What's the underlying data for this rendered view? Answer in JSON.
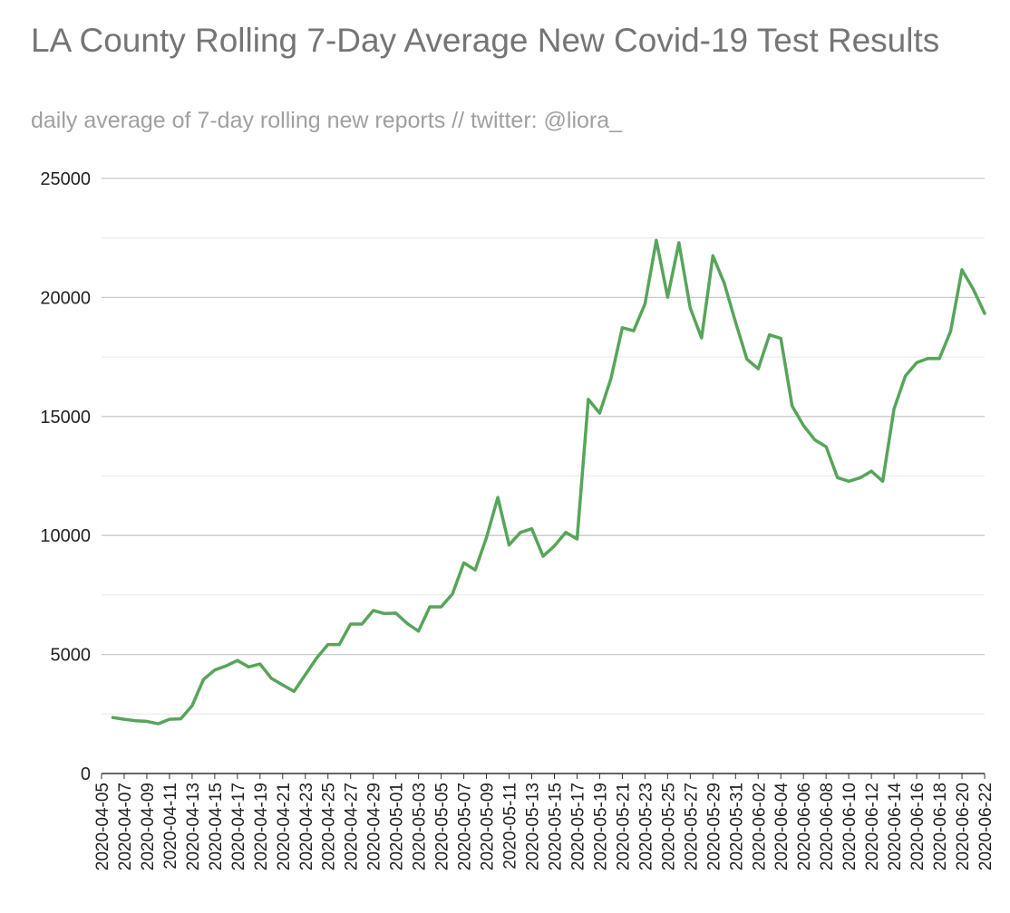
{
  "chart_data": {
    "type": "line",
    "title": "LA County Rolling 7-Day Average New Covid-19 Test Results",
    "subtitle": "daily average of 7-day rolling new reports // twitter: @liora_",
    "xlabel": "",
    "ylabel": "",
    "ylim": [
      0,
      25000
    ],
    "yticks": [
      "0",
      "5000",
      "10000",
      "15000",
      "20000",
      "25000"
    ],
    "grid": true,
    "legend": "none",
    "x_tick_labels": [
      "2020-04-05",
      "2020-04-07",
      "2020-04-09",
      "2020-04-11",
      "2020-04-13",
      "2020-04-15",
      "2020-04-17",
      "2020-04-19",
      "2020-04-21",
      "2020-04-23",
      "2020-04-25",
      "2020-04-27",
      "2020-04-29",
      "2020-05-01",
      "2020-05-03",
      "2020-05-05",
      "2020-05-07",
      "2020-05-09",
      "2020-05-11",
      "2020-05-13",
      "2020-05-15",
      "2020-05-17",
      "2020-05-19",
      "2020-05-21",
      "2020-05-23",
      "2020-05-25",
      "2020-05-27",
      "2020-05-29",
      "2020-05-31",
      "2020-06-02",
      "2020-06-04",
      "2020-06-06",
      "2020-06-08",
      "2020-06-10",
      "2020-06-12",
      "2020-06-14",
      "2020-06-16",
      "2020-06-18",
      "2020-06-20",
      "2020-06-22"
    ],
    "x": [
      "2020-04-06",
      "2020-04-07",
      "2020-04-08",
      "2020-04-09",
      "2020-04-10",
      "2020-04-11",
      "2020-04-12",
      "2020-04-13",
      "2020-04-14",
      "2020-04-15",
      "2020-04-16",
      "2020-04-17",
      "2020-04-18",
      "2020-04-19",
      "2020-04-20",
      "2020-04-21",
      "2020-04-22",
      "2020-04-23",
      "2020-04-24",
      "2020-04-25",
      "2020-04-26",
      "2020-04-27",
      "2020-04-28",
      "2020-04-29",
      "2020-04-30",
      "2020-05-01",
      "2020-05-02",
      "2020-05-03",
      "2020-05-04",
      "2020-05-05",
      "2020-05-06",
      "2020-05-07",
      "2020-05-08",
      "2020-05-09",
      "2020-05-10",
      "2020-05-11",
      "2020-05-12",
      "2020-05-13",
      "2020-05-14",
      "2020-05-15",
      "2020-05-16",
      "2020-05-17",
      "2020-05-18",
      "2020-05-19",
      "2020-05-20",
      "2020-05-21",
      "2020-05-22",
      "2020-05-23",
      "2020-05-24",
      "2020-05-25",
      "2020-05-26",
      "2020-05-27",
      "2020-05-28",
      "2020-05-29",
      "2020-05-30",
      "2020-05-31",
      "2020-06-01",
      "2020-06-02",
      "2020-06-03",
      "2020-06-04",
      "2020-06-05",
      "2020-06-06",
      "2020-06-07",
      "2020-06-08",
      "2020-06-09",
      "2020-06-10",
      "2020-06-11",
      "2020-06-12",
      "2020-06-13",
      "2020-06-14",
      "2020-06-15",
      "2020-06-16",
      "2020-06-17",
      "2020-06-18",
      "2020-06-19",
      "2020-06-20",
      "2020-06-21",
      "2020-06-22"
    ],
    "series": [
      {
        "color": "#57a55a",
        "values": [
          2350,
          2280,
          2220,
          2190,
          2090,
          2280,
          2300,
          2850,
          3950,
          4350,
          4520,
          4750,
          4480,
          4600,
          4000,
          3720,
          3450,
          4150,
          4850,
          5420,
          5420,
          6280,
          6280,
          6850,
          6720,
          6740,
          6300,
          5980,
          7000,
          7000,
          7550,
          8850,
          8550,
          9920,
          11600,
          9600,
          10130,
          10280,
          9130,
          9560,
          10130,
          9850,
          15720,
          15140,
          16600,
          18730,
          18600,
          19730,
          22400,
          20010,
          22300,
          19560,
          18300,
          21750,
          20600,
          18960,
          17410,
          17000,
          18430,
          18280,
          15440,
          14620,
          14020,
          13730,
          12430,
          12280,
          12420,
          12700,
          12280,
          15320,
          16700,
          17260,
          17440,
          17430,
          18580,
          21160,
          20350,
          19330
        ]
      }
    ]
  }
}
